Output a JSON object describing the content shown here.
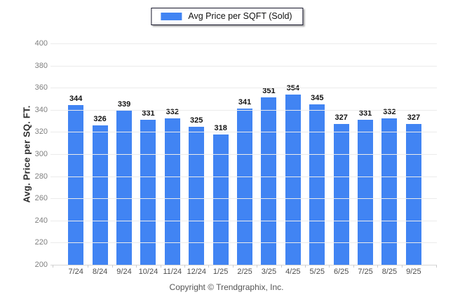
{
  "legend": {
    "label": "Avg Price per SQFT (Sold)",
    "swatch_color": "#4184F3",
    "swatch_icon": "blue-square"
  },
  "chart_data": {
    "type": "bar",
    "title": "",
    "categories": [
      "7/24",
      "8/24",
      "9/24",
      "10/24",
      "11/24",
      "12/24",
      "1/25",
      "2/25",
      "3/25",
      "4/25",
      "5/25",
      "6/25",
      "7/25",
      "8/25",
      "9/25"
    ],
    "values": [
      344,
      326,
      339,
      331,
      332,
      325,
      318,
      341,
      351,
      354,
      345,
      327,
      331,
      332,
      327
    ],
    "series_name": "Avg Price per SQFT (Sold)",
    "xlabel": "",
    "ylabel": "Avg. Price per SQ. FT.",
    "ylim": [
      200,
      400
    ],
    "ytick_step": 20,
    "ytick_labels": [
      "200",
      "220",
      "240",
      "260",
      "280",
      "300",
      "320",
      "340",
      "360",
      "380",
      "400"
    ],
    "grid": true,
    "legend_position": "top-center",
    "bar_color": "#4184F3",
    "gridline_color": "#ebebeb",
    "data_labels": true
  },
  "footer": {
    "copyright": "Copyright © Trendgraphix, Inc."
  }
}
